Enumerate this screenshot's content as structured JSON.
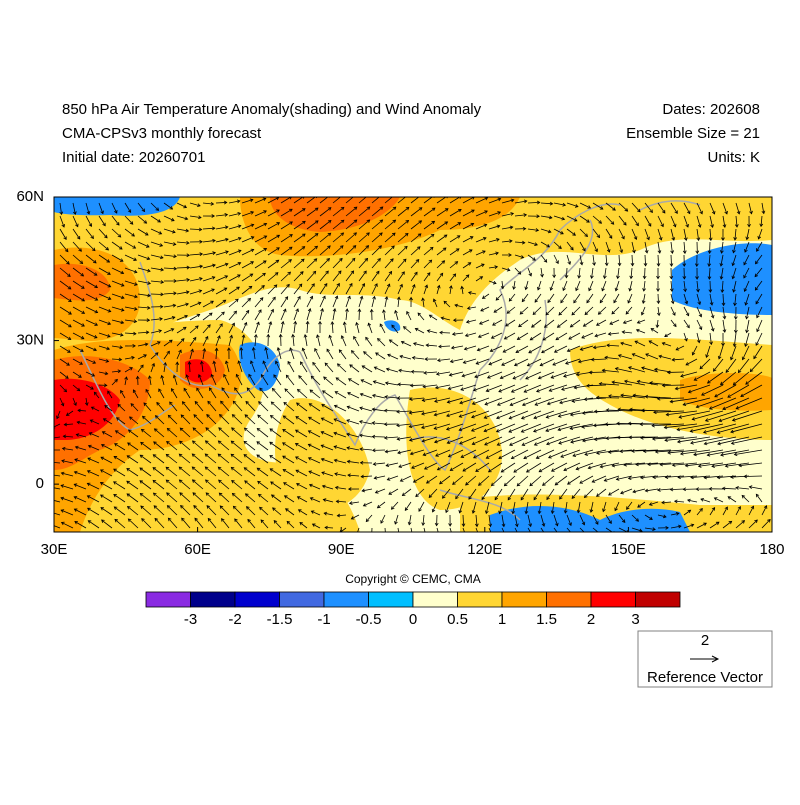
{
  "header": {
    "title": "850 hPa Air Temperature Anomaly(shading) and Wind Anomaly",
    "subtitle": "CMA-CPSv3 monthly forecast",
    "initial_date": "Initial date: 20260701",
    "dates": "Dates: 202608",
    "ensemble": "Ensemble Size = 21",
    "units": "Units: K"
  },
  "map": {
    "xlim": [
      30,
      180
    ],
    "ylim": [
      -10,
      60
    ],
    "xticks": [
      {
        "value": 30,
        "label": "30E"
      },
      {
        "value": 60,
        "label": "60E"
      },
      {
        "value": 90,
        "label": "90E"
      },
      {
        "value": 120,
        "label": "120E"
      },
      {
        "value": 150,
        "label": "150E"
      },
      {
        "value": 180,
        "label": "180"
      }
    ],
    "yticks": [
      {
        "value": 60,
        "label": "60N"
      },
      {
        "value": 30,
        "label": "30N"
      },
      0
    ]
  },
  "colorbar": {
    "colors": [
      "#8a2be2",
      "#00008b",
      "#0000cd",
      "#4169e1",
      "#1e90ff",
      "#00bfff",
      "#ffffcc",
      "#ffd633",
      "#ffa500",
      "#ff7000",
      "#ff0000",
      "#c00000"
    ],
    "ticks": [
      -3,
      -2,
      -1.5,
      -1,
      -0.5,
      0,
      0.5,
      1,
      1.5,
      2,
      3
    ]
  },
  "copyright": "Copyright © CEMC, CMA",
  "reference_vector": {
    "value": 2,
    "label": "Reference Vector"
  }
}
